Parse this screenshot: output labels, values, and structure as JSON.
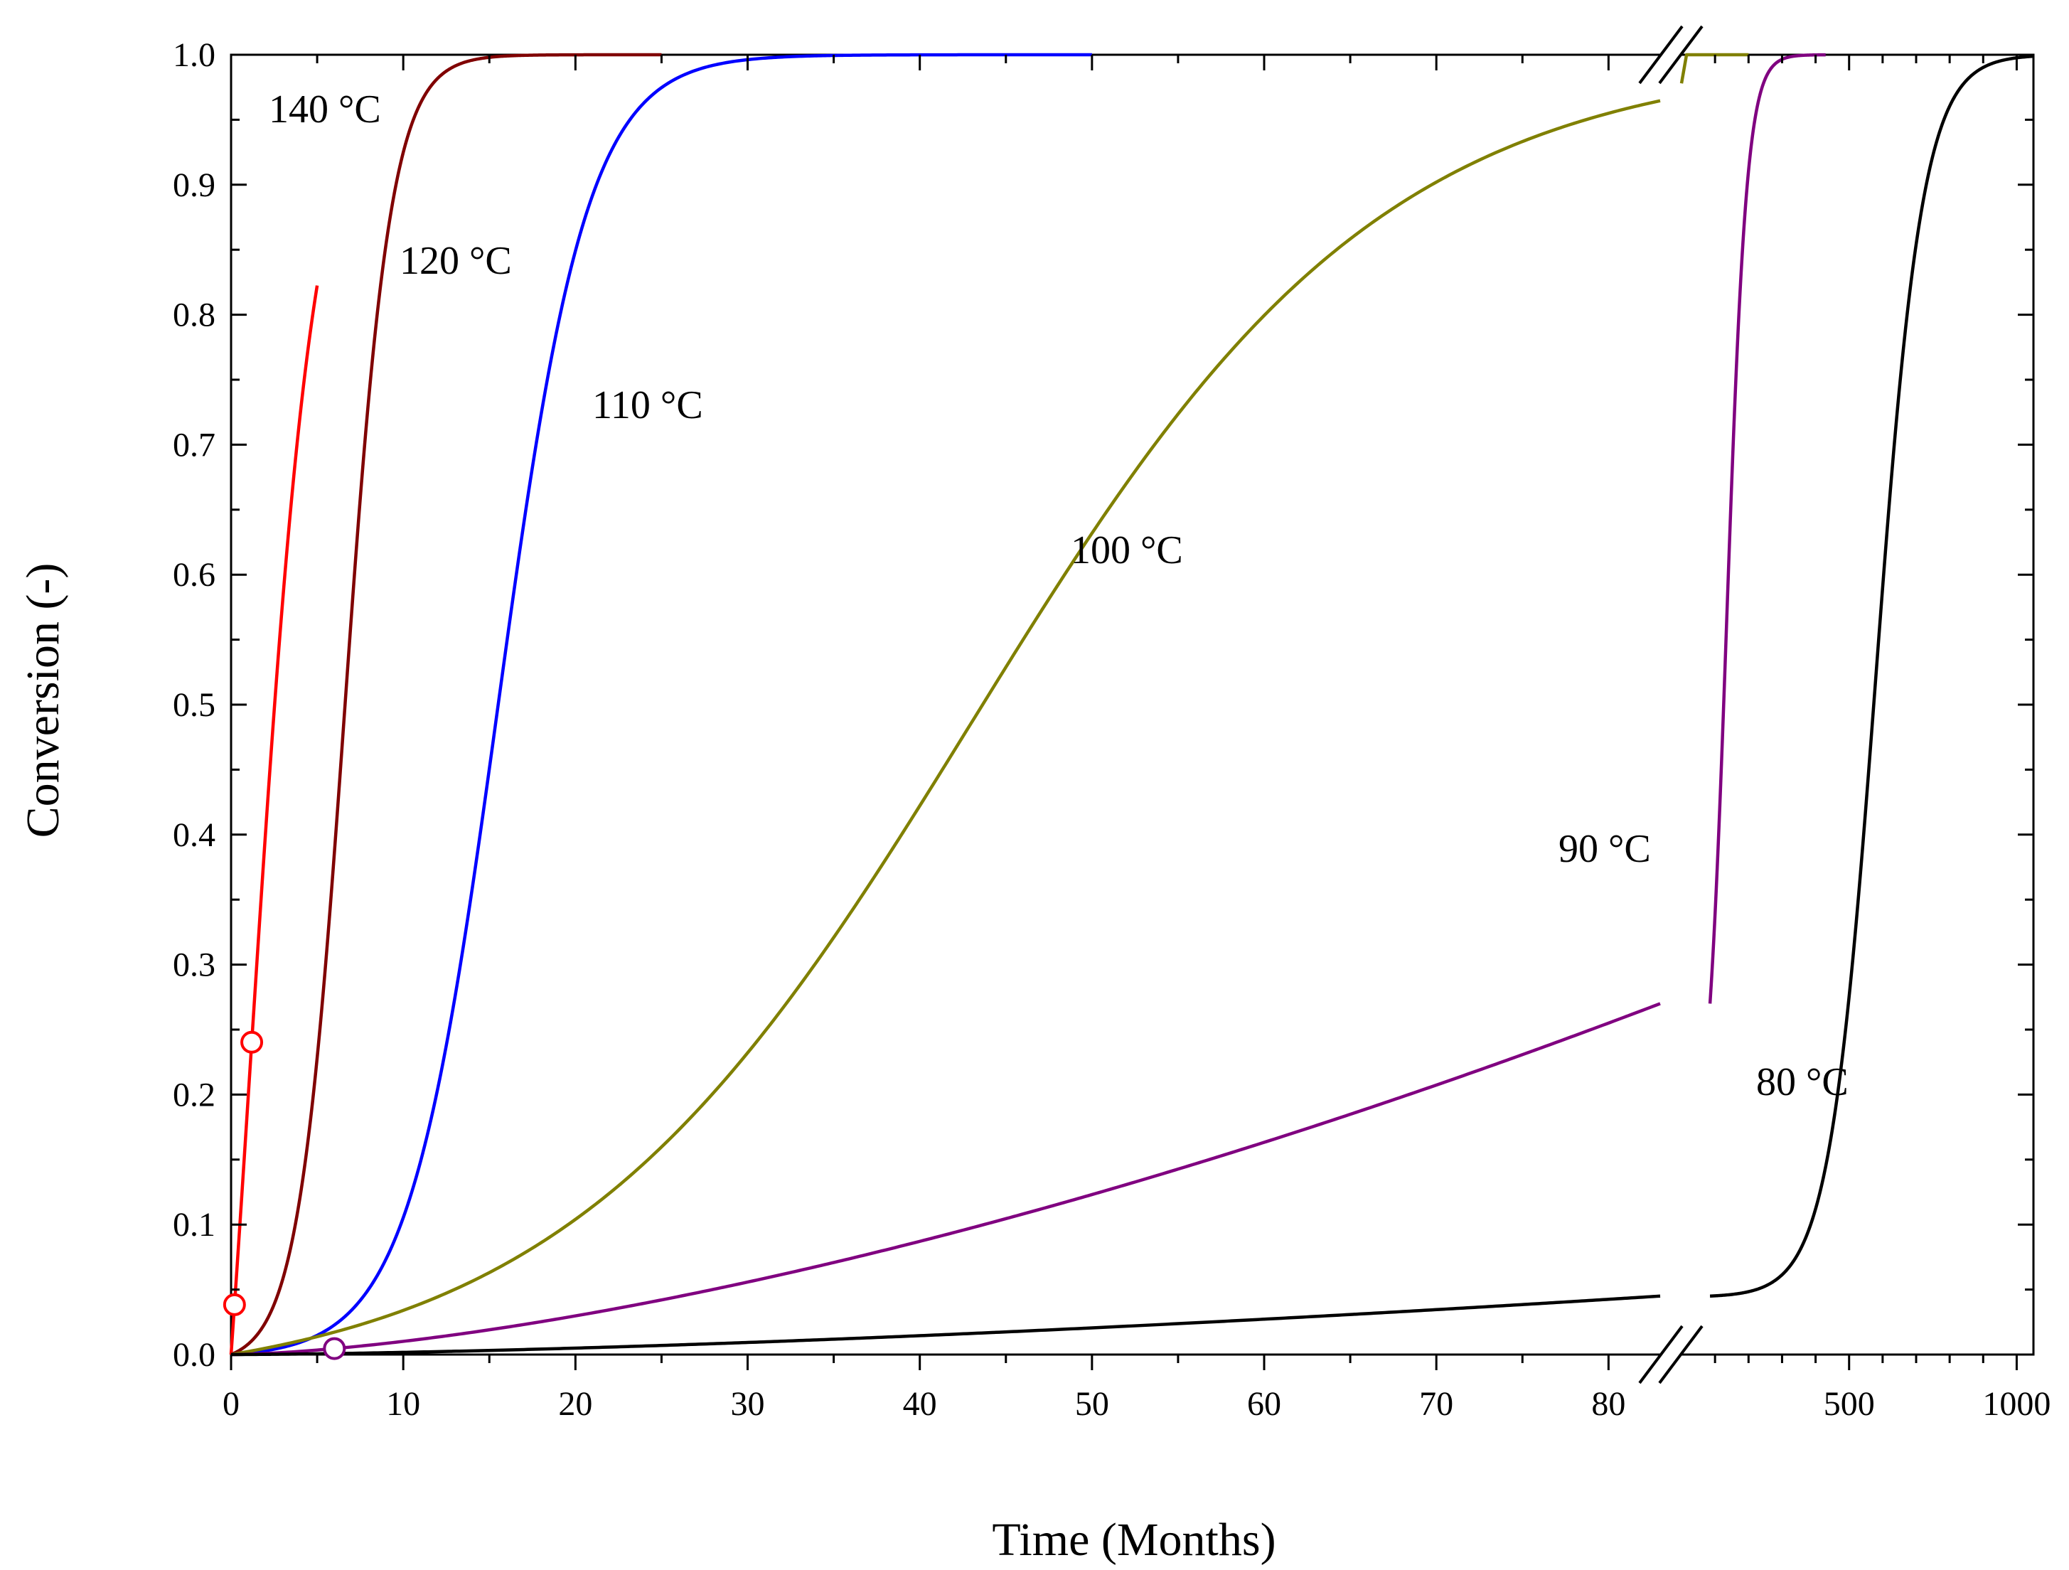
{
  "chart_data": {
    "type": "line",
    "title": "",
    "xlabel": "Time (Months)",
    "ylabel": "Conversion (-)",
    "ylim": [
      0.0,
      1.0
    ],
    "yticks": [
      "0.0",
      "0.1",
      "0.2",
      "0.3",
      "0.4",
      "0.5",
      "0.6",
      "0.7",
      "0.8",
      "0.9",
      "1.0"
    ],
    "x_segments": [
      {
        "xlim": [
          0,
          83
        ],
        "ticks": [
          "0",
          "10",
          "20",
          "30",
          "40",
          "50",
          "60",
          "70",
          "80"
        ]
      },
      {
        "xlim": [
          0,
          1050
        ],
        "ticks": [
          "500",
          "1000"
        ]
      }
    ],
    "axis_break_after": 83,
    "series": [
      {
        "name": "140 °C",
        "label": "140 °C",
        "color": "#ff0000",
        "t0": 1.1,
        "k": 1.9,
        "xmax1": 5,
        "marker_x": [
          0.2,
          1.2
        ]
      },
      {
        "name": "120 °C",
        "label": "120 °C",
        "color": "#800000",
        "t0": 6.6,
        "k": 1.35,
        "xmax1": 25
      },
      {
        "name": "110 °C",
        "label": "110 °C",
        "color": "#0000ff",
        "t0": 15.5,
        "k": 2.6,
        "xmax1": 50
      },
      {
        "name": "100 °C",
        "label": "100 °C",
        "color": "#808000",
        "t0": 43,
        "k": 12,
        "xmax1": 83,
        "seg2_range": [
          0,
          200
        ]
      },
      {
        "name": "90 °C",
        "label": "90 °C",
        "color": "#800080",
        "xmax1": 83,
        "end_value_seg1": 0.27,
        "seg2_t0": 135,
        "seg2_k": 30,
        "seg2_range": [
          85,
          430
        ],
        "marker_x": [
          6
        ]
      },
      {
        "name": "80 °C",
        "label": "80 °C",
        "color": "#000000",
        "xmax1": 83,
        "end_value_seg1": 0.045,
        "seg2_t0": 580,
        "seg2_k": 70,
        "seg2_range": [
          85,
          1050
        ]
      }
    ]
  }
}
